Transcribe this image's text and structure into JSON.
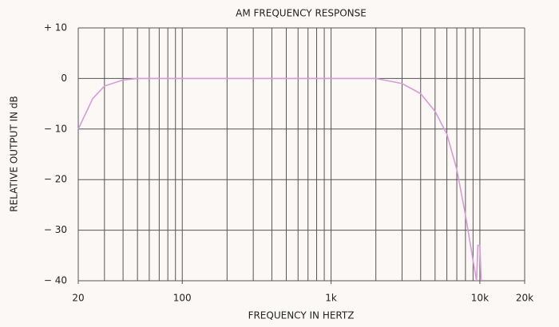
{
  "chart_data": {
    "type": "line",
    "title": "AM FREQUENCY RESPONSE",
    "x_label": "FREQUENCY IN HERTZ",
    "y_label": "RELATIVE OUTPUT IN dB",
    "x_scale": "log",
    "xlim": [
      20,
      20000
    ],
    "ylim": [
      -40,
      10
    ],
    "xticks": [
      {
        "value": 20,
        "label": "20"
      },
      {
        "value": 100,
        "label": "100"
      },
      {
        "value": 1000,
        "label": "1k"
      },
      {
        "value": 10000,
        "label": "10k"
      },
      {
        "value": 20000,
        "label": "20k"
      }
    ],
    "xgrid": [
      20,
      30,
      40,
      50,
      60,
      70,
      80,
      90,
      100,
      200,
      300,
      400,
      500,
      600,
      700,
      800,
      900,
      1000,
      2000,
      3000,
      4000,
      5000,
      6000,
      7000,
      8000,
      9000,
      10000,
      20000
    ],
    "yticks": [
      {
        "value": 10,
        "label": "+ 10"
      },
      {
        "value": 0,
        "label": "0"
      },
      {
        "value": -10,
        "label": "− 10"
      },
      {
        "value": -20,
        "label": "− 20"
      },
      {
        "value": -30,
        "label": "− 30"
      },
      {
        "value": -40,
        "label": "− 40"
      }
    ],
    "grid": true,
    "series": [
      {
        "color": "#d79bd6",
        "x": [
          20,
          25,
          30,
          40,
          50,
          100,
          1000,
          2000,
          3000,
          4000,
          5000,
          6000,
          7000,
          8000,
          9000,
          9500,
          9700,
          10000,
          10200
        ],
        "values": [
          -10,
          -4,
          -1.5,
          -0.3,
          0,
          0,
          0,
          0,
          -1,
          -3,
          -6.5,
          -11,
          -18,
          -27,
          -36,
          -40,
          -33,
          -33,
          -40
        ]
      }
    ]
  }
}
